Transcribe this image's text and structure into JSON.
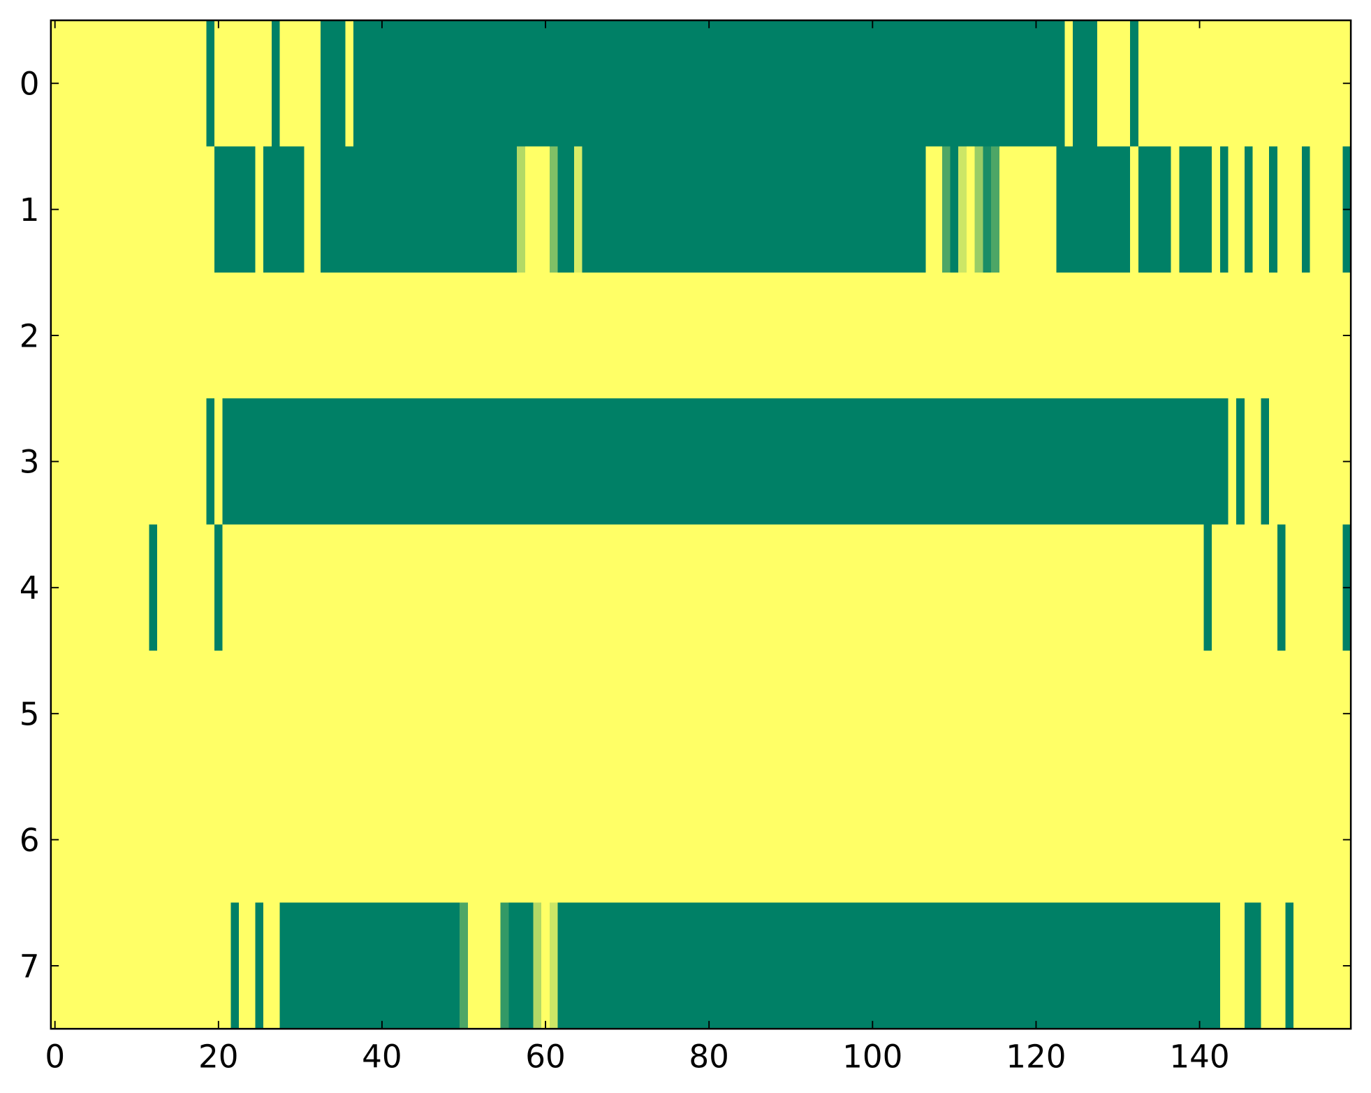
{
  "chart_data": {
    "type": "heatmap",
    "colormap": [
      "#008066",
      "#ffff66"
    ],
    "xlim": [
      -0.5,
      158.5
    ],
    "ylim": [
      7.5,
      -0.5
    ],
    "xticks": [
      0,
      20,
      40,
      60,
      80,
      100,
      120,
      140
    ],
    "yticks": [
      0,
      1,
      2,
      3,
      4,
      5,
      6,
      7
    ],
    "z": [
      [
        1,
        1,
        1,
        1,
        1,
        1,
        1,
        1,
        1,
        1,
        1,
        1,
        1,
        1,
        1,
        1,
        1,
        1,
        1,
        0,
        1,
        1,
        1,
        1,
        1,
        1,
        1,
        0,
        1,
        1,
        1,
        1,
        1,
        0,
        0,
        0,
        1,
        0,
        0,
        0,
        0,
        0,
        0,
        0,
        0,
        0,
        0,
        0,
        0,
        0,
        0,
        0,
        0,
        0,
        0,
        0,
        0,
        0,
        0,
        0,
        0,
        0,
        0,
        0,
        0,
        0,
        0,
        0,
        0,
        0,
        0,
        0,
        0,
        0,
        0,
        0,
        0,
        0,
        0,
        0,
        0,
        0,
        0,
        0,
        0,
        0,
        0,
        0,
        0,
        0,
        0,
        0,
        0,
        0,
        0,
        0,
        0,
        0,
        0,
        0,
        0,
        0,
        0,
        0,
        0,
        0,
        0,
        0,
        0,
        0,
        0,
        0,
        0,
        0,
        0,
        0,
        0,
        0,
        0,
        0,
        0,
        0,
        0,
        0,
        1,
        0,
        0,
        0,
        1,
        1,
        1,
        1,
        0,
        1,
        1,
        1,
        1,
        1,
        1,
        1,
        1,
        1,
        1,
        1,
        1,
        1,
        1,
        1,
        1,
        1,
        1,
        1,
        1,
        1,
        1,
        1,
        1,
        1,
        1
      ],
      [
        1,
        1,
        1,
        1,
        1,
        1,
        1,
        1,
        1,
        1,
        1,
        1,
        1,
        1,
        1,
        1,
        1,
        1,
        1,
        1,
        0,
        0,
        0,
        0,
        0,
        1,
        0,
        0,
        0,
        0,
        0,
        1,
        1,
        0,
        0,
        0,
        0,
        0,
        0,
        0,
        0,
        0,
        0,
        0,
        0,
        0,
        0,
        0,
        0,
        0,
        0,
        0,
        0,
        0,
        0,
        0,
        0,
        0.7,
        1,
        1,
        1,
        0.5,
        0,
        0,
        0.85,
        0,
        0,
        0,
        0,
        0,
        0,
        0,
        0,
        0,
        0,
        0,
        0,
        0,
        0,
        0,
        0,
        0,
        0,
        0,
        0,
        0,
        0,
        0,
        0,
        0,
        0,
        0,
        0,
        0,
        0,
        0,
        0,
        0,
        0,
        0,
        0,
        0,
        0,
        0,
        0,
        0,
        0,
        1,
        1,
        0.3,
        0,
        0.8,
        1,
        0.6,
        0.1,
        0.3,
        1,
        1,
        1,
        1,
        1,
        1,
        1,
        0,
        0,
        0,
        0,
        0,
        0,
        0,
        0,
        0,
        1,
        0,
        0,
        0,
        0,
        1,
        0,
        0,
        0,
        0,
        1,
        0,
        1,
        1,
        0,
        1,
        1,
        0,
        1,
        1,
        1,
        0,
        1,
        1,
        1,
        1,
        0
      ],
      [
        1,
        1,
        1,
        1,
        1,
        1,
        1,
        1,
        1,
        1,
        1,
        1,
        1,
        1,
        1,
        1,
        1,
        1,
        1,
        1,
        1,
        1,
        1,
        1,
        1,
        1,
        1,
        1,
        1,
        1,
        1,
        1,
        1,
        1,
        1,
        1,
        1,
        1,
        1,
        1,
        1,
        1,
        1,
        1,
        1,
        1,
        1,
        1,
        1,
        1,
        1,
        1,
        1,
        1,
        1,
        1,
        1,
        1,
        1,
        1,
        1,
        1,
        1,
        1,
        1,
        1,
        1,
        1,
        1,
        1,
        1,
        1,
        1,
        1,
        1,
        1,
        1,
        1,
        1,
        1,
        1,
        1,
        1,
        1,
        1,
        1,
        1,
        1,
        1,
        1,
        1,
        1,
        1,
        1,
        1,
        1,
        1,
        1,
        1,
        1,
        1,
        1,
        1,
        1,
        1,
        1,
        1,
        1,
        1,
        1,
        1,
        1,
        1,
        1,
        1,
        1,
        1,
        1,
        1,
        1,
        1,
        1,
        1,
        1,
        1,
        1,
        1,
        1,
        1,
        1,
        1,
        1,
        1,
        1,
        1,
        1,
        1,
        1,
        1,
        1,
        1,
        1,
        1,
        1,
        1,
        1,
        1,
        1,
        1,
        1,
        1,
        1,
        1,
        1,
        1,
        1,
        1,
        1,
        1
      ],
      [
        1,
        1,
        1,
        1,
        1,
        1,
        1,
        1,
        1,
        1,
        1,
        1,
        1,
        1,
        1,
        1,
        1,
        1,
        1,
        0,
        1,
        0,
        0,
        0,
        0,
        0,
        0,
        0,
        0,
        0,
        0,
        0,
        0,
        0,
        0,
        0,
        0,
        0,
        0,
        0,
        0,
        0,
        0,
        0,
        0,
        0,
        0,
        0,
        0,
        0,
        0,
        0,
        0,
        0,
        0,
        0,
        0,
        0,
        0,
        0,
        0,
        0,
        0,
        0,
        0,
        0,
        0,
        0,
        0,
        0,
        0,
        0,
        0,
        0,
        0,
        0,
        0,
        0,
        0,
        0,
        0,
        0,
        0,
        0,
        0,
        0,
        0,
        0,
        0,
        0,
        0,
        0,
        0,
        0,
        0,
        0,
        0,
        0,
        0,
        0,
        0,
        0,
        0,
        0,
        0,
        0,
        0,
        0,
        0,
        0,
        0,
        0,
        0,
        0,
        0,
        0,
        0,
        0,
        0,
        0,
        0,
        0,
        0,
        0,
        0,
        0,
        0,
        0,
        0,
        0,
        0,
        0,
        0,
        0,
        0,
        0,
        0,
        0,
        0,
        0,
        0,
        0,
        0,
        0,
        1,
        0,
        1,
        1,
        0,
        1,
        1,
        1,
        1,
        1,
        1,
        1,
        1,
        1,
        1
      ],
      [
        1,
        1,
        1,
        1,
        1,
        1,
        1,
        1,
        1,
        1,
        1,
        1,
        0,
        1,
        1,
        1,
        1,
        1,
        1,
        1,
        0,
        1,
        1,
        1,
        1,
        1,
        1,
        1,
        1,
        1,
        1,
        1,
        1,
        1,
        1,
        1,
        1,
        1,
        1,
        1,
        1,
        1,
        1,
        1,
        1,
        1,
        1,
        1,
        1,
        1,
        1,
        1,
        1,
        1,
        1,
        1,
        1,
        1,
        1,
        1,
        1,
        1,
        1,
        1,
        1,
        1,
        1,
        1,
        1,
        1,
        1,
        1,
        1,
        1,
        1,
        1,
        1,
        1,
        1,
        1,
        1,
        1,
        1,
        1,
        1,
        1,
        1,
        1,
        1,
        1,
        1,
        1,
        1,
        1,
        1,
        1,
        1,
        1,
        1,
        1,
        1,
        1,
        1,
        1,
        1,
        1,
        1,
        1,
        1,
        1,
        1,
        1,
        1,
        1,
        1,
        1,
        1,
        1,
        1,
        1,
        1,
        1,
        1,
        1,
        1,
        1,
        1,
        1,
        1,
        1,
        1,
        1,
        1,
        1,
        1,
        1,
        1,
        1,
        1,
        1,
        1,
        0,
        1,
        1,
        1,
        1,
        1,
        1,
        1,
        1,
        0,
        1,
        1,
        1,
        1,
        1,
        1,
        1,
        0
      ],
      [
        1,
        1,
        1,
        1,
        1,
        1,
        1,
        1,
        1,
        1,
        1,
        1,
        1,
        1,
        1,
        1,
        1,
        1,
        1,
        1,
        1,
        1,
        1,
        1,
        1,
        1,
        1,
        1,
        1,
        1,
        1,
        1,
        1,
        1,
        1,
        1,
        1,
        1,
        1,
        1,
        1,
        1,
        1,
        1,
        1,
        1,
        1,
        1,
        1,
        1,
        1,
        1,
        1,
        1,
        1,
        1,
        1,
        1,
        1,
        1,
        1,
        1,
        1,
        1,
        1,
        1,
        1,
        1,
        1,
        1,
        1,
        1,
        1,
        1,
        1,
        1,
        1,
        1,
        1,
        1,
        1,
        1,
        1,
        1,
        1,
        1,
        1,
        1,
        1,
        1,
        1,
        1,
        1,
        1,
        1,
        1,
        1,
        1,
        1,
        1,
        1,
        1,
        1,
        1,
        1,
        1,
        1,
        1,
        1,
        1,
        1,
        1,
        1,
        1,
        1,
        1,
        1,
        1,
        1,
        1,
        1,
        1,
        1,
        1,
        1,
        1,
        1,
        1,
        1,
        1,
        1,
        1,
        1,
        1,
        1,
        1,
        1,
        1,
        1,
        1,
        1,
        1,
        1,
        1,
        1,
        1,
        1,
        1,
        1,
        1,
        1,
        1,
        1,
        1,
        1,
        1,
        1,
        1,
        1
      ],
      [
        1,
        1,
        1,
        1,
        1,
        1,
        1,
        1,
        1,
        1,
        1,
        1,
        1,
        1,
        1,
        1,
        1,
        1,
        1,
        1,
        1,
        1,
        1,
        1,
        1,
        1,
        1,
        1,
        1,
        1,
        1,
        1,
        1,
        1,
        1,
        1,
        1,
        1,
        1,
        1,
        1,
        1,
        1,
        1,
        1,
        1,
        1,
        1,
        1,
        1,
        1,
        1,
        1,
        1,
        1,
        1,
        1,
        1,
        1,
        1,
        1,
        1,
        1,
        1,
        1,
        1,
        1,
        1,
        1,
        1,
        1,
        1,
        1,
        1,
        1,
        1,
        1,
        1,
        1,
        1,
        1,
        1,
        1,
        1,
        1,
        1,
        1,
        1,
        1,
        1,
        1,
        1,
        1,
        1,
        1,
        1,
        1,
        1,
        1,
        1,
        1,
        1,
        1,
        1,
        1,
        1,
        1,
        1,
        1,
        1,
        1,
        1,
        1,
        1,
        1,
        1,
        1,
        1,
        1,
        1,
        1,
        1,
        1,
        1,
        1,
        1,
        1,
        1,
        1,
        1,
        1,
        1,
        1,
        1,
        1,
        1,
        1,
        1,
        1,
        1,
        1,
        1,
        1,
        1,
        1,
        1,
        1,
        1,
        1,
        1,
        1,
        1,
        1,
        1,
        1,
        1,
        1,
        1,
        1
      ],
      [
        1,
        1,
        1,
        1,
        1,
        1,
        1,
        1,
        1,
        1,
        1,
        1,
        1,
        1,
        1,
        1,
        1,
        1,
        1,
        1,
        1,
        1,
        0,
        1,
        1,
        0,
        1,
        1,
        0,
        0,
        0,
        0,
        0,
        0,
        0,
        0,
        0,
        0,
        0,
        0,
        0,
        0,
        0,
        0,
        0,
        0,
        0,
        0,
        0,
        0,
        0.3,
        1,
        1,
        1,
        1,
        0.2,
        0,
        0,
        0,
        0.7,
        1,
        0.8,
        0,
        0,
        0,
        0,
        0,
        0,
        0,
        0,
        0,
        0,
        0,
        0,
        0,
        0,
        0,
        0,
        0,
        0,
        0,
        0,
        0,
        0,
        0,
        0,
        0,
        0,
        0,
        0,
        0,
        0,
        0,
        0,
        0,
        0,
        0,
        0,
        0,
        0,
        0,
        0,
        0,
        0,
        0,
        0,
        0,
        0,
        0,
        0,
        0,
        0,
        0,
        0,
        0,
        0,
        0,
        0,
        0,
        0,
        0,
        0,
        0,
        0,
        0,
        0,
        0,
        0,
        0,
        0,
        0,
        0,
        0,
        0,
        0,
        0,
        0,
        0,
        0,
        0,
        0,
        0,
        0,
        1,
        1,
        1,
        0,
        0,
        1,
        1,
        1,
        0,
        1,
        1,
        1,
        1,
        1,
        1,
        1
      ]
    ]
  }
}
